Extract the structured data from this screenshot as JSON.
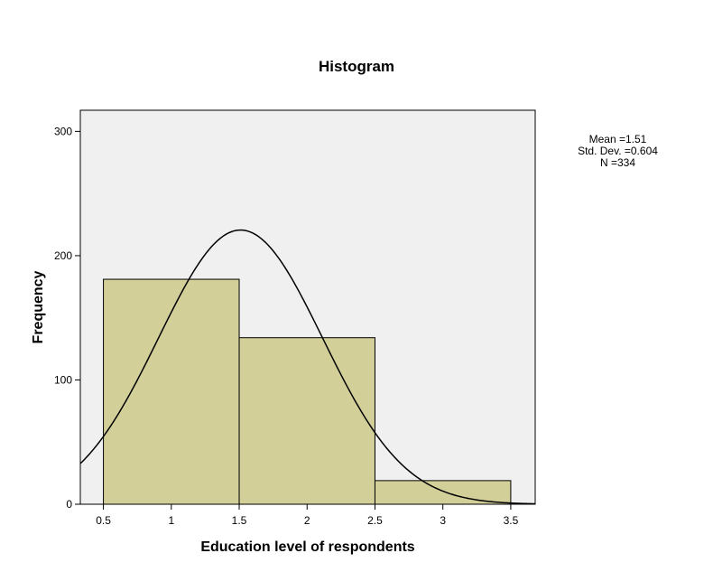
{
  "chart_data": {
    "type": "bar",
    "title": "Histogram",
    "xlabel": "Education level of respondents",
    "ylabel": "Frequency",
    "bins": [
      {
        "from": 0.5,
        "to": 1.5,
        "count": 181
      },
      {
        "from": 1.5,
        "to": 2.5,
        "count": 134
      },
      {
        "from": 2.5,
        "to": 3.5,
        "count": 19
      }
    ],
    "xlim": [
      0.33,
      3.68
    ],
    "ylim": [
      0,
      317
    ],
    "xticks": [
      "0.5",
      "1",
      "1.5",
      "2",
      "2.5",
      "3",
      "3.5"
    ],
    "xtick_values": [
      0.5,
      1,
      1.5,
      2,
      2.5,
      3,
      3.5
    ],
    "yticks": [
      "0",
      "100",
      "200",
      "300"
    ],
    "ytick_values": [
      0,
      100,
      200,
      300
    ],
    "normal_curve": {
      "mean": 1.51,
      "std_dev": 0.604,
      "n": 334,
      "bin_width": 1
    },
    "stats_labels": [
      "Mean =1.51",
      "Std. Dev. =0.604",
      "N =334"
    ],
    "colors": {
      "plot_background": "#f0f0f0",
      "bar_fill": "#d3cf99",
      "outline": "#000000"
    }
  }
}
